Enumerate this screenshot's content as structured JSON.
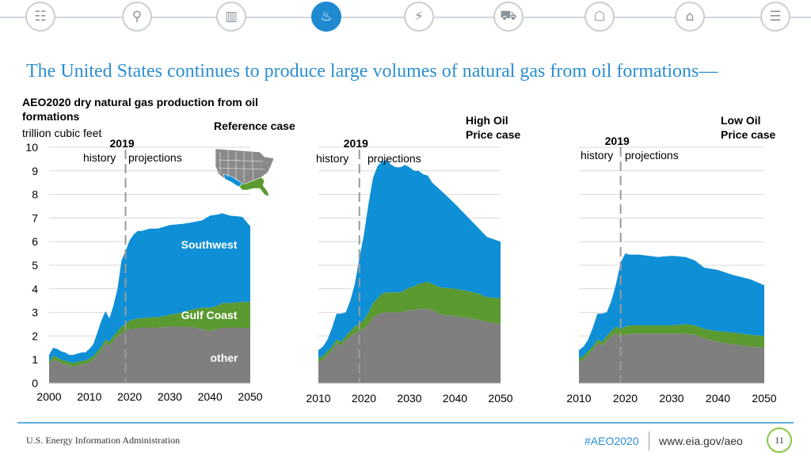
{
  "nav": {
    "icons": [
      "overview-icon",
      "search-icon",
      "oil-barrel-icon",
      "natural-gas-icon",
      "electricity-icon",
      "transportation-icon",
      "buildings-icon",
      "industrial-icon",
      "documents-icon"
    ],
    "active": "natural-gas-icon",
    "glyphs": [
      "☷",
      "⚲",
      "▥",
      "♨",
      "⚡",
      "⛟",
      "☖",
      "⌂",
      "☰"
    ]
  },
  "headline": "The United States continues to produce large volumes of natural gas from oil formations—",
  "chart_title": {
    "line1": "AEO2020 dry natural gas production from oil",
    "line2": "formations",
    "units": "trillion cubic feet"
  },
  "footer": {
    "org": "U.S. Energy Information Administration",
    "tag": "#AEO2020",
    "url": "www.eia.gov/aeo",
    "page": "11"
  },
  "chart_data": [
    {
      "type": "area",
      "title": "Reference case",
      "stacked": true,
      "x": [
        2000,
        2001,
        2002,
        2003,
        2004,
        2005,
        2006,
        2007,
        2008,
        2009,
        2010,
        2011,
        2012,
        2013,
        2014,
        2015,
        2016,
        2017,
        2018,
        2019,
        2020,
        2021,
        2022,
        2023,
        2025,
        2027,
        2030,
        2033,
        2035,
        2038,
        2040,
        2042,
        2043,
        2045,
        2048,
        2050
      ],
      "series": [
        {
          "name": "other",
          "color": "#7f7f7f",
          "values": [
            0.8,
            1.0,
            0.95,
            0.85,
            0.8,
            0.75,
            0.7,
            0.75,
            0.8,
            0.8,
            0.9,
            1.0,
            1.2,
            1.4,
            1.7,
            1.6,
            1.8,
            2.0,
            2.1,
            2.2,
            2.3,
            2.3,
            2.35,
            2.35,
            2.35,
            2.35,
            2.4,
            2.4,
            2.4,
            2.3,
            2.2,
            2.3,
            2.35,
            2.35,
            2.35,
            2.35
          ]
        },
        {
          "name": "Gulf Coast",
          "color": "#5b9a31",
          "values": [
            0.1,
            0.15,
            0.15,
            0.15,
            0.15,
            0.15,
            0.15,
            0.15,
            0.15,
            0.15,
            0.15,
            0.15,
            0.15,
            0.15,
            0.15,
            0.15,
            0.2,
            0.2,
            0.3,
            0.3,
            0.35,
            0.4,
            0.4,
            0.4,
            0.45,
            0.45,
            0.5,
            0.6,
            0.7,
            0.9,
            1.0,
            1.0,
            1.05,
            1.05,
            1.1,
            1.1
          ]
        },
        {
          "name": "Southwest",
          "color": "#0f8fd6",
          "values": [
            0.3,
            0.35,
            0.35,
            0.35,
            0.35,
            0.3,
            0.35,
            0.35,
            0.35,
            0.35,
            0.4,
            0.5,
            0.8,
            1.1,
            1.2,
            1.0,
            1.3,
            1.8,
            2.8,
            3.1,
            3.4,
            3.6,
            3.7,
            3.7,
            3.75,
            3.75,
            3.8,
            3.75,
            3.7,
            3.7,
            3.9,
            3.85,
            3.8,
            3.7,
            3.6,
            3.2
          ]
        }
      ],
      "xlim": [
        2000,
        2050
      ],
      "ylim": [
        0,
        10
      ],
      "xticks": [
        2000,
        2010,
        2020,
        2030,
        2040,
        2050
      ],
      "yticks": [
        0,
        1,
        2,
        3,
        4,
        5,
        6,
        7,
        8,
        9,
        10
      ],
      "divider_year": 2019,
      "divider_label": "2019",
      "history_label": "history",
      "projection_label": "projections",
      "region_labels": {
        "Southwest": "Southwest",
        "Gulf Coast": "Gulf Coast",
        "other": "other"
      }
    },
    {
      "type": "area",
      "title": "High Oil Price case",
      "stacked": true,
      "x": [
        2010,
        2011,
        2012,
        2013,
        2014,
        2015,
        2016,
        2017,
        2018,
        2019,
        2020,
        2021,
        2022,
        2023,
        2024,
        2025,
        2026,
        2027,
        2028,
        2029,
        2030,
        2031,
        2032,
        2033,
        2034,
        2035,
        2037,
        2040,
        2043,
        2045,
        2047,
        2050
      ],
      "series": [
        {
          "name": "other",
          "values": [
            0.9,
            1.0,
            1.2,
            1.4,
            1.7,
            1.6,
            1.8,
            2.0,
            2.1,
            2.2,
            2.3,
            2.5,
            2.8,
            2.9,
            3.0,
            3.0,
            3.0,
            3.0,
            3.0,
            3.05,
            3.1,
            3.1,
            3.15,
            3.15,
            3.15,
            3.1,
            2.9,
            2.85,
            2.75,
            2.7,
            2.6,
            2.5
          ]
        },
        {
          "name": "Gulf Coast",
          "values": [
            0.15,
            0.15,
            0.15,
            0.15,
            0.15,
            0.15,
            0.2,
            0.2,
            0.3,
            0.3,
            0.4,
            0.5,
            0.6,
            0.7,
            0.8,
            0.85,
            0.85,
            0.85,
            0.85,
            0.9,
            0.95,
            1.0,
            1.05,
            1.1,
            1.15,
            1.1,
            1.15,
            1.15,
            1.15,
            1.1,
            1.05,
            1.1
          ]
        },
        {
          "name": "Southwest",
          "values": [
            0.35,
            0.4,
            0.5,
            0.8,
            1.1,
            1.2,
            1.0,
            1.3,
            1.8,
            2.8,
            3.6,
            4.6,
            5.3,
            5.6,
            5.6,
            5.6,
            5.4,
            5.3,
            5.3,
            5.3,
            5.1,
            4.9,
            4.8,
            4.6,
            4.5,
            4.3,
            4.1,
            3.6,
            3.1,
            2.8,
            2.55,
            2.4
          ]
        }
      ],
      "xlim": [
        2010,
        2050
      ],
      "ylim": [
        0,
        10
      ],
      "xticks": [
        2010,
        2020,
        2030,
        2040,
        2050
      ],
      "divider_year": 2019,
      "title_lines": [
        "High Oil",
        "Price case"
      ],
      "divider_label": "2019",
      "history_label": "history",
      "projection_label": "projections"
    },
    {
      "type": "area",
      "title": "Low Oil Price case",
      "stacked": true,
      "x": [
        2010,
        2011,
        2012,
        2013,
        2014,
        2015,
        2016,
        2017,
        2018,
        2019,
        2020,
        2021,
        2022,
        2023,
        2025,
        2027,
        2030,
        2033,
        2035,
        2037,
        2040,
        2043,
        2045,
        2047,
        2050
      ],
      "series": [
        {
          "name": "other",
          "values": [
            0.9,
            1.0,
            1.2,
            1.4,
            1.7,
            1.6,
            1.8,
            2.0,
            2.1,
            2.0,
            2.05,
            2.1,
            2.1,
            2.1,
            2.1,
            2.1,
            2.1,
            2.1,
            2.05,
            1.9,
            1.75,
            1.65,
            1.6,
            1.55,
            1.5
          ]
        },
        {
          "name": "Gulf Coast",
          "values": [
            0.15,
            0.15,
            0.15,
            0.15,
            0.15,
            0.15,
            0.2,
            0.2,
            0.3,
            0.3,
            0.35,
            0.35,
            0.35,
            0.35,
            0.35,
            0.35,
            0.35,
            0.4,
            0.4,
            0.4,
            0.45,
            0.5,
            0.5,
            0.5,
            0.5
          ]
        },
        {
          "name": "Southwest",
          "values": [
            0.35,
            0.4,
            0.5,
            0.8,
            1.1,
            1.2,
            1.0,
            1.3,
            1.8,
            2.8,
            3.1,
            3.0,
            3.0,
            3.0,
            2.95,
            2.9,
            2.95,
            2.85,
            2.75,
            2.6,
            2.6,
            2.45,
            2.4,
            2.35,
            2.15
          ]
        }
      ],
      "xlim": [
        2010,
        2050
      ],
      "ylim": [
        0,
        10
      ],
      "xticks": [
        2010,
        2020,
        2030,
        2040,
        2050
      ],
      "divider_year": 2019,
      "title_lines": [
        "Low Oil",
        "Price case"
      ],
      "divider_label": "2019",
      "history_label": "history",
      "projection_label": "projections"
    }
  ]
}
